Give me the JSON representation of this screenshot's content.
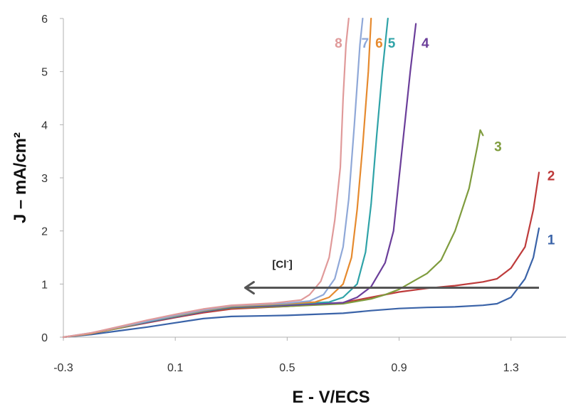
{
  "chart_data": {
    "type": "line",
    "title": "",
    "xlabel": "E - V/ECS",
    "ylabel": "J – mA/cm²",
    "xlim": [
      -0.3,
      1.5
    ],
    "ylim": [
      0,
      6
    ],
    "xticks": [
      -0.3,
      0.1,
      0.5,
      0.9,
      1.3
    ],
    "xtick_labels": [
      "-0.3",
      "0.1",
      "0.5",
      "0.9",
      "1.3"
    ],
    "yticks": [
      0,
      1,
      2,
      3,
      4,
      5,
      6
    ],
    "ytick_labels": [
      "0",
      "1",
      "2",
      "3",
      "4",
      "5",
      "6"
    ],
    "grid": false,
    "legend": "none (series labelled at curve ends)",
    "annotation": {
      "text": "[Cl",
      "superscript": "-",
      "text_end": "]",
      "arrow_from": [
        1.4,
        0.93
      ],
      "arrow_to": [
        0.35,
        0.93
      ],
      "color": "#555555"
    },
    "series": [
      {
        "name": "1",
        "color": "#3a63a8",
        "label_pos": [
          1.43,
          1.75
        ],
        "points": [
          [
            -0.3,
            0
          ],
          [
            -0.2,
            0.05
          ],
          [
            -0.1,
            0.12
          ],
          [
            0.0,
            0.19
          ],
          [
            0.1,
            0.27
          ],
          [
            0.2,
            0.35
          ],
          [
            0.3,
            0.39
          ],
          [
            0.5,
            0.41
          ],
          [
            0.7,
            0.45
          ],
          [
            0.8,
            0.5
          ],
          [
            0.9,
            0.54
          ],
          [
            1.0,
            0.56
          ],
          [
            1.1,
            0.57
          ],
          [
            1.2,
            0.6
          ],
          [
            1.25,
            0.63
          ],
          [
            1.3,
            0.75
          ],
          [
            1.35,
            1.1
          ],
          [
            1.38,
            1.5
          ],
          [
            1.4,
            2.05
          ]
        ]
      },
      {
        "name": "2",
        "color": "#be3b3b",
        "label_pos": [
          1.43,
          2.95
        ],
        "points": [
          [
            -0.3,
            0
          ],
          [
            -0.2,
            0.07
          ],
          [
            -0.1,
            0.17
          ],
          [
            0.0,
            0.27
          ],
          [
            0.1,
            0.37
          ],
          [
            0.2,
            0.46
          ],
          [
            0.3,
            0.53
          ],
          [
            0.5,
            0.58
          ],
          [
            0.7,
            0.65
          ],
          [
            0.8,
            0.75
          ],
          [
            0.9,
            0.85
          ],
          [
            1.0,
            0.92
          ],
          [
            1.1,
            0.97
          ],
          [
            1.2,
            1.04
          ],
          [
            1.25,
            1.1
          ],
          [
            1.3,
            1.3
          ],
          [
            1.35,
            1.7
          ],
          [
            1.38,
            2.4
          ],
          [
            1.4,
            3.1
          ]
        ]
      },
      {
        "name": "3",
        "color": "#7f9c3e",
        "label_pos": [
          1.24,
          3.5
        ],
        "points": [
          [
            -0.3,
            0
          ],
          [
            -0.2,
            0.07
          ],
          [
            -0.1,
            0.17
          ],
          [
            0.0,
            0.28
          ],
          [
            0.1,
            0.38
          ],
          [
            0.2,
            0.48
          ],
          [
            0.3,
            0.55
          ],
          [
            0.5,
            0.58
          ],
          [
            0.7,
            0.63
          ],
          [
            0.8,
            0.72
          ],
          [
            0.85,
            0.8
          ],
          [
            0.9,
            0.9
          ],
          [
            0.95,
            1.05
          ],
          [
            1.0,
            1.2
          ],
          [
            1.05,
            1.45
          ],
          [
            1.1,
            2.0
          ],
          [
            1.15,
            2.8
          ],
          [
            1.18,
            3.6
          ],
          [
            1.19,
            3.9
          ],
          [
            1.2,
            3.8
          ]
        ]
      },
      {
        "name": "4",
        "color": "#6b3e9a",
        "label_pos": [
          0.98,
          5.45
        ],
        "points": [
          [
            -0.3,
            0
          ],
          [
            -0.2,
            0.07
          ],
          [
            -0.1,
            0.18
          ],
          [
            0.0,
            0.28
          ],
          [
            0.1,
            0.38
          ],
          [
            0.2,
            0.48
          ],
          [
            0.3,
            0.56
          ],
          [
            0.5,
            0.6
          ],
          [
            0.7,
            0.65
          ],
          [
            0.75,
            0.75
          ],
          [
            0.8,
            0.95
          ],
          [
            0.85,
            1.4
          ],
          [
            0.88,
            2.0
          ],
          [
            0.9,
            3.0
          ],
          [
            0.92,
            4.0
          ],
          [
            0.94,
            5.0
          ],
          [
            0.96,
            5.9
          ]
        ]
      },
      {
        "name": "5",
        "color": "#2fa3a8",
        "label_pos": [
          0.86,
          5.45
        ],
        "points": [
          [
            -0.3,
            0
          ],
          [
            -0.2,
            0.07
          ],
          [
            -0.1,
            0.18
          ],
          [
            0.0,
            0.29
          ],
          [
            0.1,
            0.39
          ],
          [
            0.2,
            0.49
          ],
          [
            0.3,
            0.57
          ],
          [
            0.5,
            0.62
          ],
          [
            0.65,
            0.66
          ],
          [
            0.7,
            0.75
          ],
          [
            0.75,
            1.0
          ],
          [
            0.78,
            1.6
          ],
          [
            0.8,
            2.5
          ],
          [
            0.82,
            3.8
          ],
          [
            0.84,
            5.0
          ],
          [
            0.86,
            6.0
          ]
        ]
      },
      {
        "name": "6",
        "color": "#e68a2e",
        "label_pos": [
          0.815,
          5.45
        ],
        "points": [
          [
            -0.3,
            0
          ],
          [
            -0.2,
            0.07
          ],
          [
            -0.1,
            0.18
          ],
          [
            0.0,
            0.3
          ],
          [
            0.1,
            0.4
          ],
          [
            0.2,
            0.5
          ],
          [
            0.3,
            0.58
          ],
          [
            0.5,
            0.63
          ],
          [
            0.6,
            0.66
          ],
          [
            0.65,
            0.75
          ],
          [
            0.7,
            1.0
          ],
          [
            0.73,
            1.5
          ],
          [
            0.75,
            2.4
          ],
          [
            0.77,
            3.6
          ],
          [
            0.79,
            5.0
          ],
          [
            0.8,
            6.0
          ]
        ]
      },
      {
        "name": "7",
        "color": "#8fa8d8",
        "label_pos": [
          0.765,
          5.45
        ],
        "points": [
          [
            -0.3,
            0
          ],
          [
            -0.2,
            0.08
          ],
          [
            -0.1,
            0.19
          ],
          [
            0.0,
            0.3
          ],
          [
            0.1,
            0.41
          ],
          [
            0.2,
            0.51
          ],
          [
            0.3,
            0.59
          ],
          [
            0.5,
            0.64
          ],
          [
            0.58,
            0.68
          ],
          [
            0.63,
            0.8
          ],
          [
            0.67,
            1.1
          ],
          [
            0.7,
            1.7
          ],
          [
            0.72,
            2.6
          ],
          [
            0.74,
            4.0
          ],
          [
            0.76,
            5.5
          ],
          [
            0.77,
            6.0
          ]
        ]
      },
      {
        "name": "8",
        "color": "#e09a9a",
        "label_pos": [
          0.67,
          5.45
        ],
        "points": [
          [
            -0.3,
            0
          ],
          [
            -0.2,
            0.08
          ],
          [
            -0.1,
            0.2
          ],
          [
            0.0,
            0.32
          ],
          [
            0.1,
            0.43
          ],
          [
            0.2,
            0.53
          ],
          [
            0.3,
            0.6
          ],
          [
            0.45,
            0.64
          ],
          [
            0.55,
            0.7
          ],
          [
            0.58,
            0.8
          ],
          [
            0.62,
            1.05
          ],
          [
            0.65,
            1.5
          ],
          [
            0.67,
            2.2
          ],
          [
            0.69,
            3.2
          ],
          [
            0.7,
            4.5
          ],
          [
            0.71,
            5.5
          ],
          [
            0.72,
            6.0
          ]
        ]
      }
    ]
  }
}
